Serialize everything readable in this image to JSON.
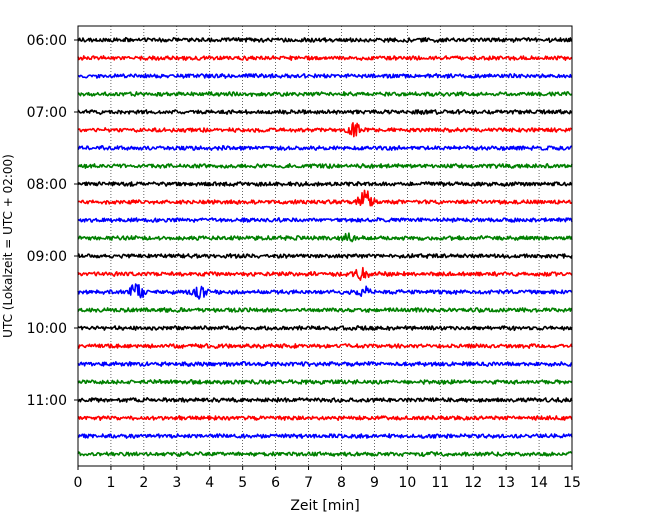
{
  "chart_data": {
    "type": "line",
    "title": "",
    "xlabel": "Zeit  [min]",
    "ylabel": "UTC (Lokalzeit = UTC + 02:00)",
    "xlim": [
      0,
      15
    ],
    "x_ticks": [
      "0",
      "1",
      "2",
      "3",
      "4",
      "5",
      "6",
      "7",
      "8",
      "9",
      "10",
      "11",
      "12",
      "13",
      "14",
      "15"
    ],
    "y_ticks": [
      "06:00",
      "07:00",
      "08:00",
      "09:00",
      "10:00",
      "11:00"
    ],
    "x_grid": "dotted vertical at each minute",
    "trace_colors": [
      "#000000",
      "#ff0000",
      "#0000ff",
      "#008000"
    ],
    "trace_start": "06:00",
    "trace_interval_min": 15,
    "trace_count": 24,
    "events": [
      {
        "trace": "07:15",
        "minute": 8.4,
        "amplitude": 1.0
      },
      {
        "trace": "08:15",
        "minute": 8.7,
        "amplitude": 2.2
      },
      {
        "trace": "08:45",
        "minute": 8.2,
        "amplitude": 0.6
      },
      {
        "trace": "09:15",
        "minute": 8.6,
        "amplitude": 0.8
      },
      {
        "trace": "09:30",
        "minute": 1.8,
        "amplitude": 1.6
      },
      {
        "trace": "09:30",
        "minute": 3.7,
        "amplitude": 0.9
      },
      {
        "trace": "09:30",
        "minute": 8.7,
        "amplitude": 0.7
      }
    ]
  }
}
